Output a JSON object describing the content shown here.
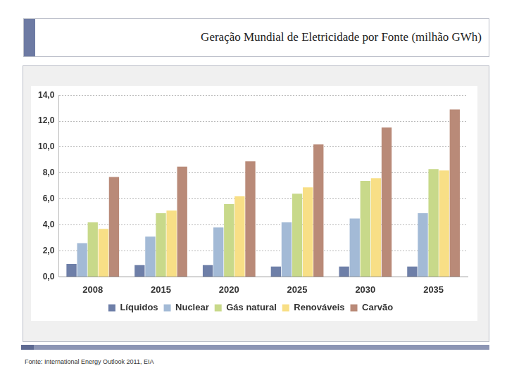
{
  "chart_data": {
    "type": "bar",
    "title": "Geração Mundial de Eletricidade por Fonte (milhão GWh)",
    "categories": [
      "2008",
      "2015",
      "2020",
      "2025",
      "2030",
      "2035"
    ],
    "series": [
      {
        "name": "Líquidos",
        "color": "#6e7fa8",
        "values": [
          1.0,
          0.9,
          0.9,
          0.8,
          0.8,
          0.8
        ]
      },
      {
        "name": "Nuclear",
        "color": "#a3bad6",
        "values": [
          2.6,
          3.1,
          3.8,
          4.2,
          4.5,
          4.9
        ]
      },
      {
        "name": "Gás natural",
        "color": "#c8d98a",
        "values": [
          4.2,
          4.9,
          5.6,
          6.4,
          7.4,
          8.3
        ]
      },
      {
        "name": "Renováveis",
        "color": "#f8df86",
        "values": [
          3.7,
          5.1,
          6.2,
          6.9,
          7.6,
          8.2
        ]
      },
      {
        "name": "Carvão",
        "color": "#b98a78",
        "values": [
          7.7,
          8.5,
          8.9,
          10.2,
          11.5,
          12.9
        ]
      }
    ],
    "ylim": [
      0,
      14
    ],
    "yticks": [
      {
        "value": 0,
        "label": "0,0"
      },
      {
        "value": 2,
        "label": "2,0"
      },
      {
        "value": 4,
        "label": "4,0"
      },
      {
        "value": 6,
        "label": "6,0"
      },
      {
        "value": 8,
        "label": "8,0"
      },
      {
        "value": 10,
        "label": "10,0"
      },
      {
        "value": 12,
        "label": "12,0"
      },
      {
        "value": 14,
        "label": "14,0"
      }
    ],
    "grid": true,
    "legend": "bottom"
  },
  "source": "Fonte: International Energy Outlook 2011, EIA"
}
